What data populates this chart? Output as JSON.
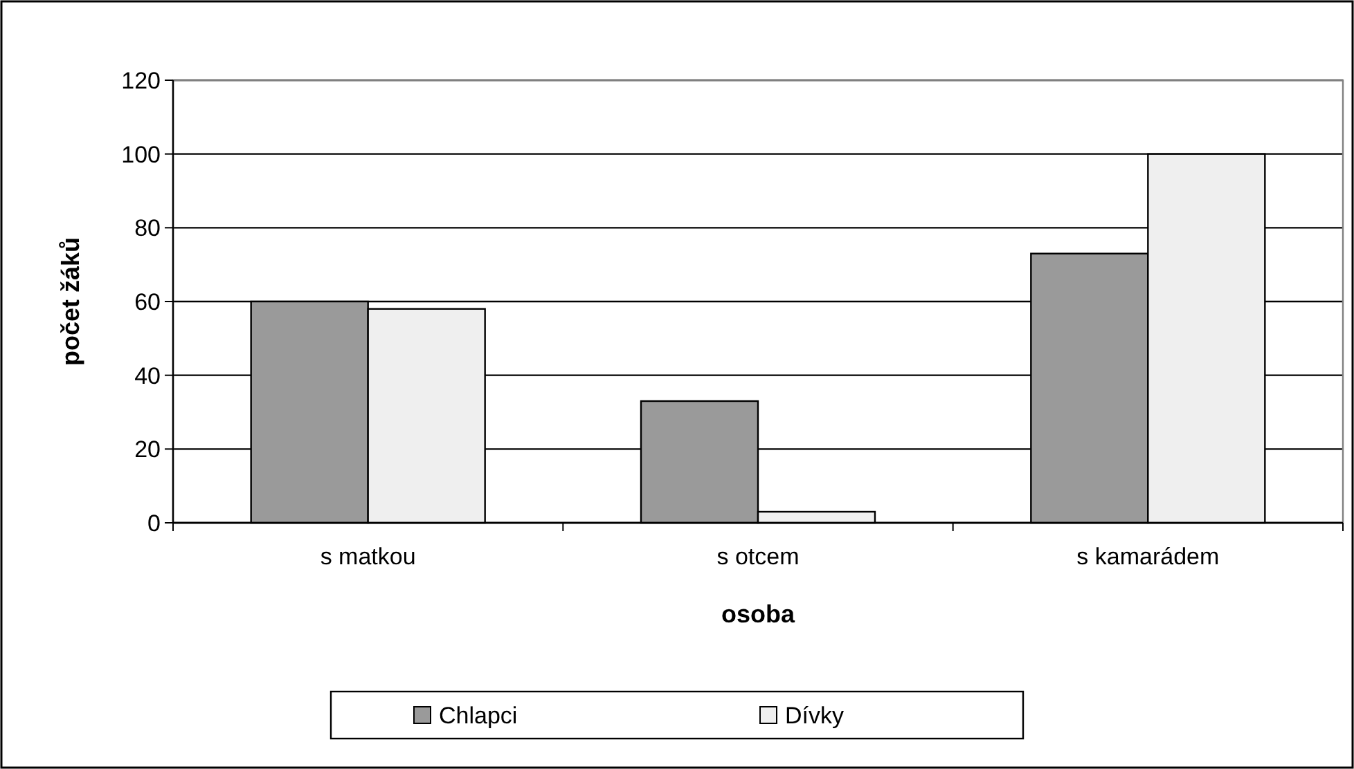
{
  "chart_data": {
    "type": "bar",
    "xlabel": "osoba",
    "ylabel": "počet žáků",
    "categories": [
      "s matkou",
      "s otcem",
      "s kamarádem"
    ],
    "series": [
      {
        "name": "Chlapci",
        "color": "#9a9a9a",
        "values": [
          60,
          33,
          73
        ]
      },
      {
        "name": "Dívky",
        "color": "#efefef",
        "values": [
          58,
          3,
          100
        ]
      }
    ],
    "ylim": [
      0,
      120
    ],
    "yticks": [
      0,
      20,
      40,
      60,
      80,
      100,
      120
    ],
    "grid": "y",
    "legend": "bottom"
  }
}
